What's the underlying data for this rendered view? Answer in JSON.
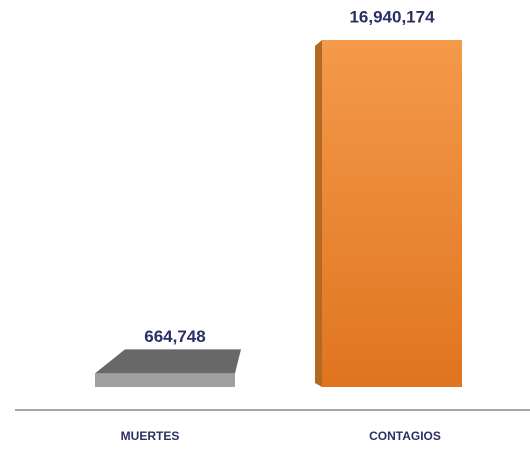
{
  "chart_data": {
    "type": "bar",
    "categories": [
      "MUERTES",
      "CONTAGIOS"
    ],
    "values": [
      664748,
      16940174
    ],
    "value_labels": [
      "664,748",
      "16,940,174"
    ],
    "colors": [
      "#7a7a7a",
      "#ee8a2e"
    ]
  }
}
